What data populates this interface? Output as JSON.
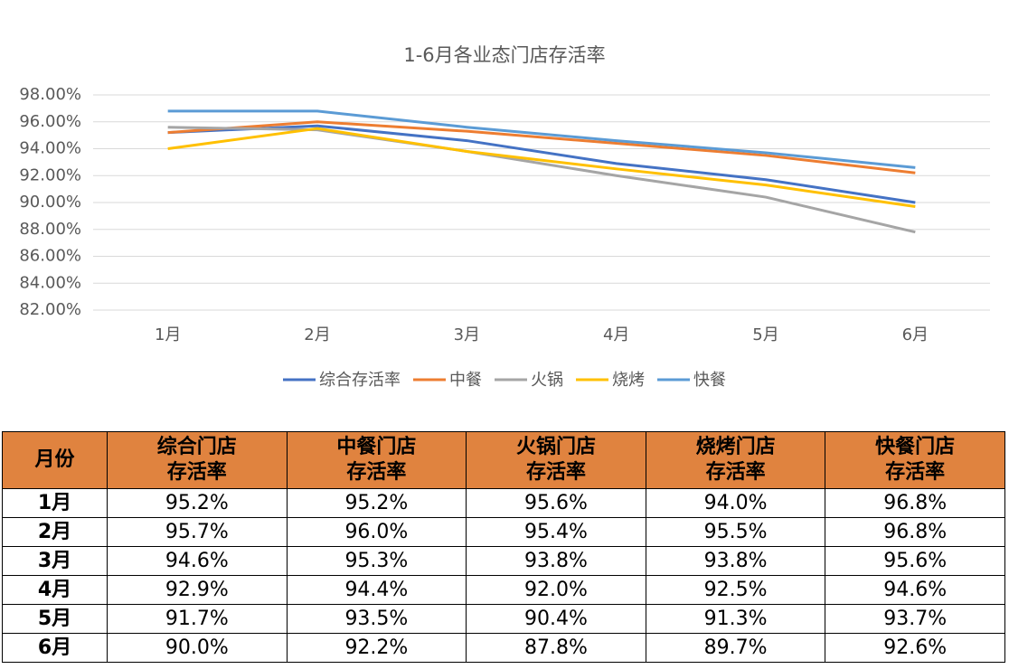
{
  "chart_data": {
    "type": "line",
    "title": "1-6月各业态门店存活率",
    "categories": [
      "1月",
      "2月",
      "3月",
      "4月",
      "5月",
      "6月"
    ],
    "series": [
      {
        "name": "综合存活率",
        "color": "#4472c4",
        "values": [
          95.2,
          95.7,
          94.6,
          92.9,
          91.7,
          90.0
        ]
      },
      {
        "name": "中餐",
        "color": "#ed7d31",
        "values": [
          95.2,
          96.0,
          95.3,
          94.4,
          93.5,
          92.2
        ]
      },
      {
        "name": "火锅",
        "color": "#a5a5a5",
        "values": [
          95.6,
          95.4,
          93.8,
          92.0,
          90.4,
          87.8
        ]
      },
      {
        "name": "烧烤",
        "color": "#ffc000",
        "values": [
          94.0,
          95.5,
          93.8,
          92.5,
          91.3,
          89.7
        ]
      },
      {
        "name": "快餐",
        "color": "#5b9bd5",
        "values": [
          96.8,
          96.8,
          95.6,
          94.6,
          93.7,
          92.6
        ]
      }
    ],
    "ylim": [
      82,
      98
    ],
    "yticks": [
      {
        "value": 82,
        "label": "82.00%"
      },
      {
        "value": 84,
        "label": "84.00%"
      },
      {
        "value": 86,
        "label": "86.00%"
      },
      {
        "value": 88,
        "label": "88.00%"
      },
      {
        "value": 90,
        "label": "90.00%"
      },
      {
        "value": 92,
        "label": "92.00%"
      },
      {
        "value": 94,
        "label": "94.00%"
      },
      {
        "value": 96,
        "label": "96.00%"
      },
      {
        "value": 98,
        "label": "98.00%"
      }
    ],
    "grid": true,
    "legend": "bottom"
  },
  "table": {
    "header": [
      "月份",
      "综合门店存活率",
      "中餐门店存活率",
      "火锅门店存活率",
      "烧烤门店存活率",
      "快餐门店存活率"
    ],
    "rows": [
      [
        "1月",
        "95.2%",
        "95.2%",
        "95.6%",
        "94.0%",
        "96.8%"
      ],
      [
        "2月",
        "95.7%",
        "96.0%",
        "95.4%",
        "95.5%",
        "96.8%"
      ],
      [
        "3月",
        "94.6%",
        "95.3%",
        "93.8%",
        "93.8%",
        "95.6%"
      ],
      [
        "4月",
        "92.9%",
        "94.4%",
        "92.0%",
        "92.5%",
        "94.6%"
      ],
      [
        "5月",
        "91.7%",
        "93.5%",
        "90.4%",
        "91.3%",
        "93.7%"
      ],
      [
        "6月",
        "90.0%",
        "92.2%",
        "87.8%",
        "89.7%",
        "92.6%"
      ]
    ]
  }
}
